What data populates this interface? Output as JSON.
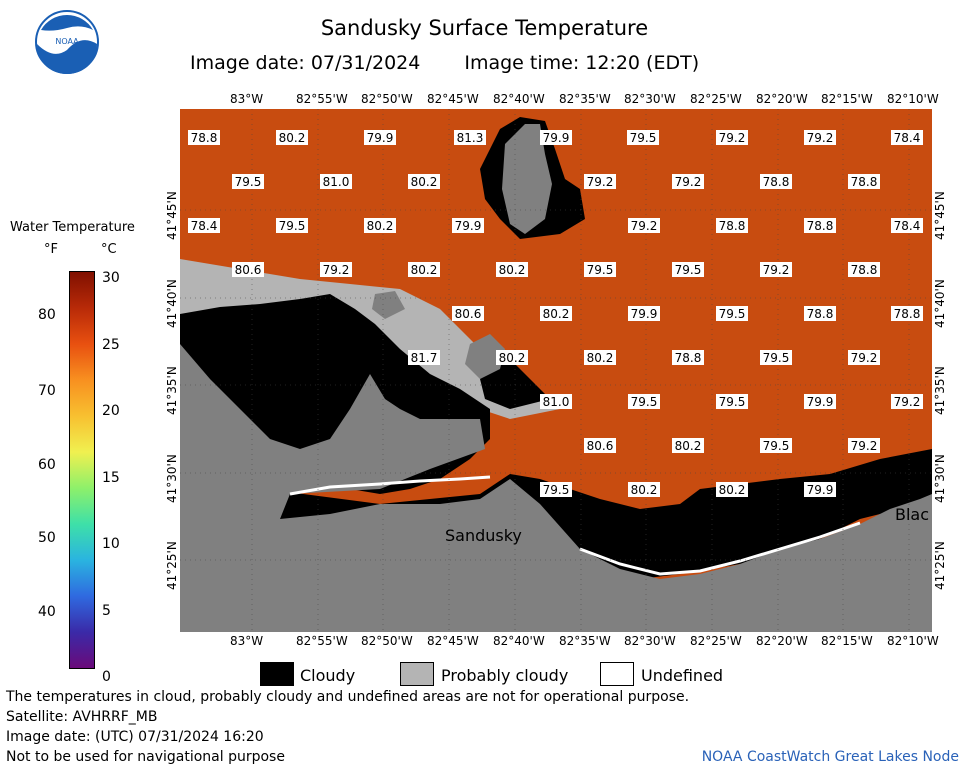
{
  "header": {
    "title": "Sandusky Surface Temperature",
    "image_date": "Image date: 07/31/2024",
    "image_time": "Image time: 12:20 (EDT)",
    "logo_text": "NOAA"
  },
  "legend": {
    "title": "Water Temperature",
    "unit_f": "°F",
    "unit_c": "°C",
    "f_ticks": [
      "80",
      "70",
      "60",
      "50",
      "40"
    ],
    "c_ticks": [
      "30",
      "25",
      "20",
      "15",
      "10",
      "5",
      "0"
    ],
    "colors": [
      "#6a0a7a",
      "#3a2aa8",
      "#2f6ae0",
      "#2ab4e0",
      "#3ee0a8",
      "#8ef06a",
      "#f0f050",
      "#f8c030",
      "#f89020",
      "#e85010",
      "#b82a08",
      "#801000"
    ]
  },
  "axes": {
    "lon_top": [
      "83°W",
      "82°55'W",
      "82°50'W",
      "82°45'W",
      "82°40'W",
      "82°35'W",
      "82°30'W",
      "82°25'W",
      "82°20'W",
      "82°15'W",
      "82°10'W"
    ],
    "lon_bottom": [
      "83°W",
      "82°55'W",
      "82°50'W",
      "82°45'W",
      "82°40'W",
      "82°35'W",
      "82°30'W",
      "82°25'W",
      "82°20'W",
      "82°15'W",
      "82°10'W"
    ],
    "lat_left": [
      "41°45'N",
      "41°40'N",
      "41°35'N",
      "41°30'N",
      "41°25'N"
    ],
    "lat_right": [
      "41°45'N",
      "41°40'N",
      "41°35'N",
      "41°30'N",
      "41°25'N"
    ]
  },
  "map": {
    "city_labels": [
      "Sandusky",
      "Blac"
    ],
    "colors": {
      "water": "#c84c10",
      "cloudy": "#000000",
      "probably_cloudy": "#b4b4b4",
      "land": "#808080",
      "undefined": "#ffffff"
    },
    "temps": [
      "78.8",
      "80.2",
      "79.9",
      "81.3",
      "79.9",
      "79.5",
      "79.2",
      "79.2",
      "78.4",
      "79.5",
      "81.0",
      "80.2",
      "79.2",
      "79.2",
      "78.8",
      "78.8",
      "78.4",
      "79.5",
      "80.2",
      "79.9",
      "79.2",
      "78.8",
      "78.8",
      "78.4",
      "80.6",
      "79.2",
      "80.2",
      "80.2",
      "79.5",
      "79.5",
      "79.2",
      "78.8",
      "80.6",
      "80.2",
      "79.9",
      "79.5",
      "78.8",
      "78.8",
      "81.7",
      "80.2",
      "80.2",
      "78.8",
      "79.5",
      "79.2",
      "81.0",
      "79.5",
      "79.5",
      "79.9",
      "79.2",
      "80.6",
      "80.2",
      "79.5",
      "79.2",
      "79.5",
      "80.2",
      "80.2",
      "79.9"
    ]
  },
  "key": {
    "cloudy": "Cloudy",
    "probably_cloudy": "Probably cloudy",
    "undefined": "Undefined"
  },
  "footer": {
    "disclaimer": "The temperatures in cloud, probably cloudy and undefined areas are not for operational purpose.",
    "satellite": "Satellite: AVHRRF_MB",
    "utc_date": "Image date: (UTC) 07/31/2024  16:20",
    "nav_warning": "Not to be used for navigational purpose",
    "credit": "NOAA CoastWatch Great Lakes Node"
  }
}
